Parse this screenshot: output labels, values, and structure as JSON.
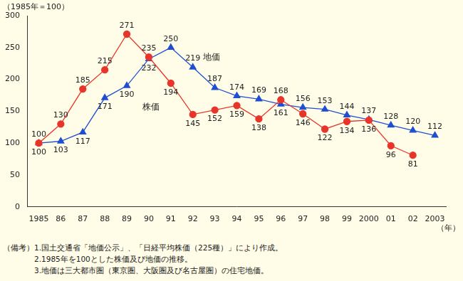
{
  "chart_data": {
    "type": "line",
    "y_label": "（1985年＝100）",
    "x_label": "（年）",
    "categories": [
      "1985",
      "86",
      "87",
      "88",
      "89",
      "90",
      "91",
      "92",
      "93",
      "94",
      "95",
      "96",
      "97",
      "98",
      "99",
      "2000",
      "01",
      "02",
      "2003"
    ],
    "series": [
      {
        "name": "株価",
        "color": "#e8352b",
        "marker": "circle",
        "values": [
          100,
          130,
          185,
          215,
          271,
          235,
          194,
          145,
          152,
          159,
          138,
          168,
          146,
          122,
          134,
          136,
          96,
          81,
          null
        ]
      },
      {
        "name": "地価",
        "color": "#1f4fd0",
        "marker": "triangle",
        "values": [
          100,
          103,
          117,
          171,
          190,
          232,
          250,
          219,
          187,
          174,
          169,
          161,
          156,
          153,
          144,
          137,
          128,
          120,
          112
        ]
      }
    ],
    "ylim": [
      0,
      300
    ],
    "yticks": [
      0,
      50,
      100,
      150,
      200,
      250,
      300
    ],
    "grid": false,
    "data_labels": true,
    "annotations": [
      "（備考）1.国土交通省「地価公示」、「日経平均株価（225種）」により作成。",
      "　　　　2.1985年を100とした株価及び地価の推移。",
      "　　　　3.地価は三大都市圏（東京圏、大阪圏及び名古屋圏）の住宅地価。"
    ]
  }
}
